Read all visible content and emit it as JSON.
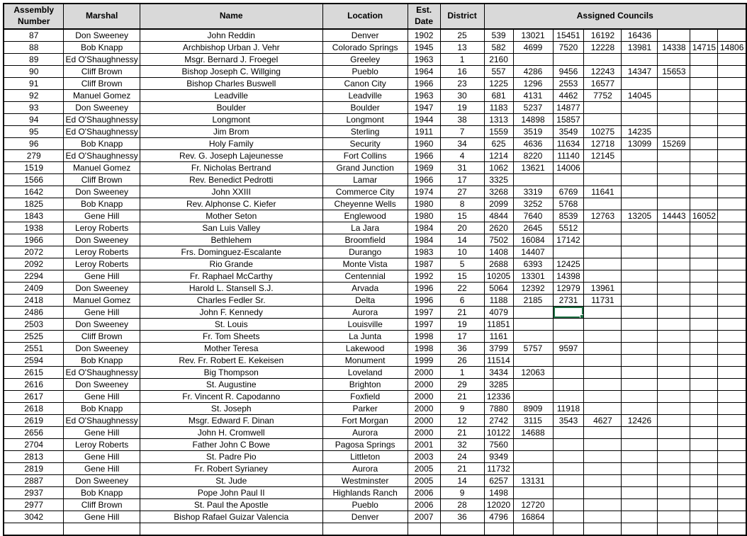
{
  "table": {
    "headers": {
      "assembly": "Assembly Number",
      "marshal": "Marshal",
      "name": "Name",
      "location": "Location",
      "est_date": "Est. Date",
      "district": "District",
      "assigned_councils": "Assigned Councils"
    },
    "council_column_count": 8,
    "rows": [
      {
        "assembly": "87",
        "marshal": "Don Sweeney",
        "name": "John Reddin",
        "location": "Denver",
        "est_date": "1902",
        "district": "25",
        "councils": [
          "539",
          "13021",
          "15451",
          "16192",
          "16436"
        ]
      },
      {
        "assembly": "88",
        "marshal": "Bob Knapp",
        "name": "Archbishop Urban J. Vehr",
        "location": "Colorado Springs",
        "est_date": "1945",
        "district": "13",
        "councils": [
          "582",
          "4699",
          "7520",
          "12228",
          "13981",
          "14338",
          "14715",
          "14806"
        ]
      },
      {
        "assembly": "89",
        "marshal": "Ed O'Shaughnessy",
        "name": "Msgr. Bernard J. Froegel",
        "location": "Greeley",
        "est_date": "1963",
        "district": "1",
        "councils": [
          "2160"
        ]
      },
      {
        "assembly": "90",
        "marshal": "Cliff Brown",
        "name": "Bishop Joseph C. Willging",
        "location": "Pueblo",
        "est_date": "1964",
        "district": "16",
        "councils": [
          "557",
          "4286",
          "9456",
          "12243",
          "14347",
          "15653"
        ]
      },
      {
        "assembly": "91",
        "marshal": "Cliff Brown",
        "name": "Bishop Charles Buswell",
        "location": "Canon City",
        "est_date": "1966",
        "district": "23",
        "councils": [
          "1225",
          "1296",
          "2553",
          "16577"
        ]
      },
      {
        "assembly": "92",
        "marshal": "Manuel Gomez",
        "name": "Leadville",
        "location": "Leadville",
        "est_date": "1963",
        "district": "30",
        "councils": [
          "681",
          "4131",
          "4462",
          "7752",
          "14045"
        ]
      },
      {
        "assembly": "93",
        "marshal": "Don Sweeney",
        "name": "Boulder",
        "location": "Boulder",
        "est_date": "1947",
        "district": "19",
        "councils": [
          "1183",
          "5237",
          "14877"
        ]
      },
      {
        "assembly": "94",
        "marshal": "Ed O'Shaughnessy",
        "name": "Longmont",
        "location": "Longmont",
        "est_date": "1944",
        "district": "38",
        "councils": [
          "1313",
          "14898",
          "15857"
        ]
      },
      {
        "assembly": "95",
        "marshal": "Ed O'Shaughnessy",
        "name": "Jim Brom",
        "location": "Sterling",
        "est_date": "1911",
        "district": "7",
        "councils": [
          "1559",
          "3519",
          "3549",
          "10275",
          "14235"
        ]
      },
      {
        "assembly": "96",
        "marshal": "Bob Knapp",
        "name": "Holy Family",
        "location": "Security",
        "est_date": "1960",
        "district": "34",
        "councils": [
          "625",
          "4636",
          "11634",
          "12718",
          "13099",
          "15269"
        ]
      },
      {
        "assembly": "279",
        "marshal": "Ed O'Shaughnessy",
        "name": "Rev. G. Joseph Lajeunesse",
        "location": "Fort Collins",
        "est_date": "1966",
        "district": "4",
        "councils": [
          "1214",
          "8220",
          "11140",
          "12145"
        ]
      },
      {
        "assembly": "1519",
        "marshal": "Manuel Gomez",
        "name": "Fr. Nicholas Bertrand",
        "location": "Grand Junction",
        "est_date": "1969",
        "district": "31",
        "councils": [
          "1062",
          "13621",
          "14006"
        ]
      },
      {
        "assembly": "1566",
        "marshal": "Cliff Brown",
        "name": "Rev. Benedict Pedrotti",
        "location": "Lamar",
        "est_date": "1966",
        "district": "17",
        "councils": [
          "3325"
        ]
      },
      {
        "assembly": "1642",
        "marshal": "Don Sweeney",
        "name": "John XXIII",
        "location": "Commerce City",
        "est_date": "1974",
        "district": "27",
        "councils": [
          "3268",
          "3319",
          "6769",
          "11641"
        ]
      },
      {
        "assembly": "1825",
        "marshal": "Bob Knapp",
        "name": "Rev. Alphonse C. Kiefer",
        "location": "Cheyenne Wells",
        "est_date": "1980",
        "district": "8",
        "councils": [
          "2099",
          "3252",
          "5768"
        ]
      },
      {
        "assembly": "1843",
        "marshal": "Gene Hill",
        "name": "Mother Seton",
        "location": "Englewood",
        "est_date": "1980",
        "district": "15",
        "councils": [
          "4844",
          "7640",
          "8539",
          "12763",
          "13205",
          "14443",
          "16052"
        ]
      },
      {
        "assembly": "1938",
        "marshal": "Leroy Roberts",
        "name": "San Luis Valley",
        "location": "La Jara",
        "est_date": "1984",
        "district": "20",
        "councils": [
          "2620",
          "2645",
          "5512"
        ]
      },
      {
        "assembly": "1966",
        "marshal": "Don Sweeney",
        "name": "Bethlehem",
        "location": "Broomfield",
        "est_date": "1984",
        "district": "14",
        "councils": [
          "7502",
          "16084",
          "17142"
        ]
      },
      {
        "assembly": "2072",
        "marshal": "Leroy Roberts",
        "name": "Frs. Dominguez-Escalante",
        "location": "Durango",
        "est_date": "1983",
        "district": "10",
        "councils": [
          "1408",
          "14407"
        ]
      },
      {
        "assembly": "2092",
        "marshal": "Leroy Roberts",
        "name": "Rio Grande",
        "location": "Monte Vista",
        "est_date": "1987",
        "district": "5",
        "councils": [
          "2688",
          "6393",
          "12425"
        ]
      },
      {
        "assembly": "2294",
        "marshal": "Gene Hill",
        "name": "Fr. Raphael McCarthy",
        "location": "Centennial",
        "est_date": "1992",
        "district": "15",
        "councils": [
          "10205",
          "13301",
          "14398"
        ]
      },
      {
        "assembly": "2409",
        "marshal": "Don Sweeney",
        "name": "Harold L. Stansell S.J.",
        "location": "Arvada",
        "est_date": "1996",
        "district": "22",
        "councils": [
          "5064",
          "12392",
          "12979",
          "13961"
        ]
      },
      {
        "assembly": "2418",
        "marshal": "Manuel Gomez",
        "name": "Charles Fedler Sr.",
        "location": "Delta",
        "est_date": "1996",
        "district": "6",
        "councils": [
          "1188",
          "2185",
          "2731",
          "11731"
        ]
      },
      {
        "assembly": "2486",
        "marshal": "Gene Hill",
        "name": "John F. Kennedy",
        "location": "Aurora",
        "est_date": "1997",
        "district": "21",
        "councils": [
          "4079"
        ]
      },
      {
        "assembly": "2503",
        "marshal": "Don Sweeney",
        "name": "St. Louis",
        "location": "Louisville",
        "est_date": "1997",
        "district": "19",
        "councils": [
          "11851"
        ]
      },
      {
        "assembly": "2525",
        "marshal": "Cliff Brown",
        "name": "Fr. Tom Sheets",
        "location": "La Junta",
        "est_date": "1998",
        "district": "17",
        "councils": [
          "1161"
        ]
      },
      {
        "assembly": "2551",
        "marshal": "Don Sweeney",
        "name": "Mother Teresa",
        "location": "Lakewood",
        "est_date": "1998",
        "district": "36",
        "councils": [
          "3799",
          "5757",
          "9597"
        ]
      },
      {
        "assembly": "2594",
        "marshal": "Bob Knapp",
        "name": "Rev. Fr. Robert E. Kekeisen",
        "location": "Monument",
        "est_date": "1999",
        "district": "26",
        "councils": [
          "11514"
        ]
      },
      {
        "assembly": "2615",
        "marshal": "Ed O'Shaughnessy",
        "name": "Big Thompson",
        "location": "Loveland",
        "est_date": "2000",
        "district": "1",
        "councils": [
          "3434",
          "12063"
        ]
      },
      {
        "assembly": "2616",
        "marshal": "Don Sweeney",
        "name": "St. Augustine",
        "location": "Brighton",
        "est_date": "2000",
        "district": "29",
        "councils": [
          "3285"
        ]
      },
      {
        "assembly": "2617",
        "marshal": "Gene Hill",
        "name": "Fr. Vincent R. Capodanno",
        "location": "Foxfield",
        "est_date": "2000",
        "district": "21",
        "councils": [
          "12336"
        ]
      },
      {
        "assembly": "2618",
        "marshal": "Bob Knapp",
        "name": "St. Joseph",
        "location": "Parker",
        "est_date": "2000",
        "district": "9",
        "councils": [
          "7880",
          "8909",
          "11918"
        ]
      },
      {
        "assembly": "2619",
        "marshal": "Ed O'Shaughnessy",
        "name": "Msgr. Edward F. Dinan",
        "location": "Fort Morgan",
        "est_date": "2000",
        "district": "12",
        "councils": [
          "2742",
          "3115",
          "3543",
          "4627",
          "12426"
        ]
      },
      {
        "assembly": "2656",
        "marshal": "Gene Hill",
        "name": "John H. Cromwell",
        "location": "Aurora",
        "est_date": "2000",
        "district": "21",
        "councils": [
          "10122",
          "14688"
        ]
      },
      {
        "assembly": "2704",
        "marshal": "Leroy Roberts",
        "name": "Father John C Bowe",
        "location": "Pagosa Springs",
        "est_date": "2001",
        "district": "32",
        "councils": [
          "7560"
        ]
      },
      {
        "assembly": "2813",
        "marshal": "Gene Hill",
        "name": "St. Padre Pio",
        "location": "Littleton",
        "est_date": "2003",
        "district": "24",
        "councils": [
          "9349"
        ]
      },
      {
        "assembly": "2819",
        "marshal": "Gene Hill",
        "name": "Fr. Robert Syrianey",
        "location": "Aurora",
        "est_date": "2005",
        "district": "21",
        "councils": [
          "11732"
        ]
      },
      {
        "assembly": "2887",
        "marshal": "Don Sweeney",
        "name": "St. Jude",
        "location": "Westminster",
        "est_date": "2005",
        "district": "14",
        "councils": [
          "6257",
          "13131"
        ]
      },
      {
        "assembly": "2937",
        "marshal": "Bob Knapp",
        "name": "Pope John Paul II",
        "location": "Highlands Ranch",
        "est_date": "2006",
        "district": "9",
        "councils": [
          "1498"
        ]
      },
      {
        "assembly": "2977",
        "marshal": "Cliff Brown",
        "name": "St. Paul the Apostle",
        "location": "Pueblo",
        "est_date": "2006",
        "district": "28",
        "councils": [
          "12020",
          "12720"
        ]
      },
      {
        "assembly": "3042",
        "marshal": "Gene Hill",
        "name": "Bishop Rafael Guizar Valencia",
        "location": "Denver",
        "est_date": "2007",
        "district": "36",
        "councils": [
          "4796",
          "16864"
        ]
      }
    ]
  },
  "selection": {
    "assembly": "2486",
    "council_index": 2
  },
  "colors": {
    "header_bg": "#d9d9d9",
    "grid_border": "#000000",
    "selection_green": "#217346",
    "background": "#ffffff"
  }
}
